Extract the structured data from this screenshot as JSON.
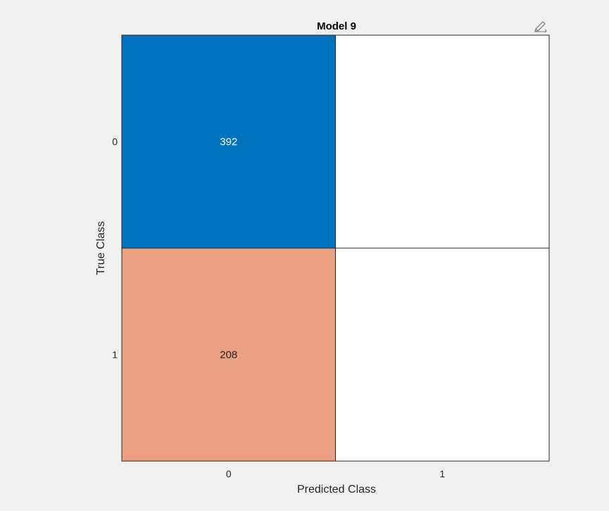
{
  "chart_data": {
    "type": "heatmap",
    "title": "Model 9",
    "xlabel": "Predicted Class",
    "ylabel": "True Class",
    "x_categories": [
      "0",
      "1"
    ],
    "y_categories": [
      "0",
      "1"
    ],
    "matrix": [
      [
        392,
        null
      ],
      [
        208,
        null
      ]
    ],
    "cell_colors": [
      [
        "#0072bd",
        "#ffffff"
      ],
      [
        "#eba081",
        "#ffffff"
      ]
    ],
    "cell_text_colors": [
      [
        "#ffffff",
        "#262626"
      ],
      [
        "#262626",
        "#262626"
      ]
    ],
    "grid": false
  },
  "toolbar": {
    "icon": "edit-pencil-icon"
  }
}
